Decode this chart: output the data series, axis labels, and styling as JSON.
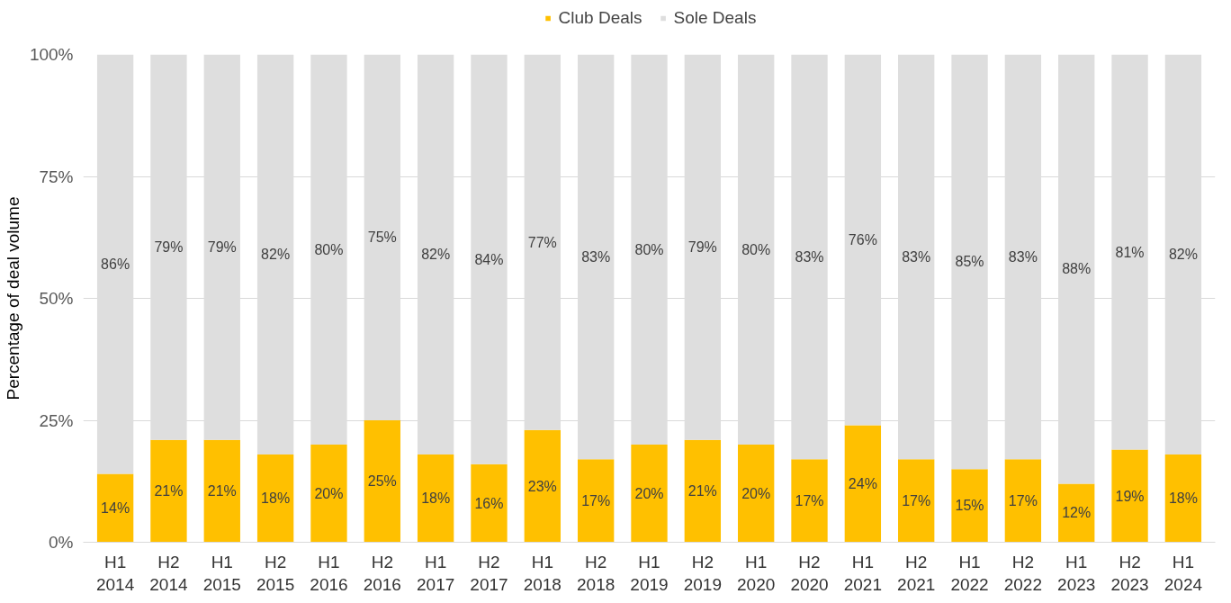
{
  "chart_data": {
    "type": "bar",
    "stacked": true,
    "ylabel": "Percentage of deal volume",
    "categories": [
      "H1\n2014",
      "H2\n2014",
      "H1\n2015",
      "H2\n2015",
      "H1\n2016",
      "H2\n2016",
      "H1\n2017",
      "H2\n2017",
      "H1\n2018",
      "H2\n2018",
      "H1\n2019",
      "H2\n2019",
      "H1\n2020",
      "H2\n2020",
      "H1\n2021",
      "H2\n2021",
      "H1\n2022",
      "H2\n2022",
      "H1\n2023",
      "H2\n2023",
      "H1\n2024"
    ],
    "series": [
      {
        "name": "Club Deals",
        "color": "#ffc000",
        "values": [
          14,
          21,
          21,
          18,
          20,
          25,
          18,
          16,
          23,
          17,
          20,
          21,
          20,
          17,
          24,
          17,
          15,
          17,
          12,
          19,
          18
        ],
        "value_labels": [
          "14%",
          "21%",
          "21%",
          "18%",
          "20%",
          "25%",
          "18%",
          "16%",
          "23%",
          "17%",
          "20%",
          "21%",
          "20%",
          "17%",
          "24%",
          "17%",
          "15%",
          "17%",
          "12%",
          "19%",
          "18%"
        ]
      },
      {
        "name": "Sole Deals",
        "color": "#dedede",
        "values": [
          86,
          79,
          79,
          82,
          80,
          75,
          82,
          84,
          77,
          83,
          80,
          79,
          80,
          83,
          76,
          83,
          85,
          83,
          88,
          81,
          82
        ],
        "value_labels": [
          "86%",
          "79%",
          "79%",
          "82%",
          "80%",
          "75%",
          "82%",
          "84%",
          "77%",
          "83%",
          "80%",
          "79%",
          "80%",
          "83%",
          "76%",
          "83%",
          "85%",
          "83%",
          "88%",
          "81%",
          "82%"
        ]
      }
    ],
    "ylim": [
      0,
      100
    ],
    "yticks": [
      {
        "value": 0,
        "label": "0%"
      },
      {
        "value": 25,
        "label": "25%"
      },
      {
        "value": 50,
        "label": "50%"
      },
      {
        "value": 75,
        "label": "75%"
      },
      {
        "value": 100,
        "label": "100%"
      }
    ],
    "grid": "y",
    "legend": "top"
  }
}
